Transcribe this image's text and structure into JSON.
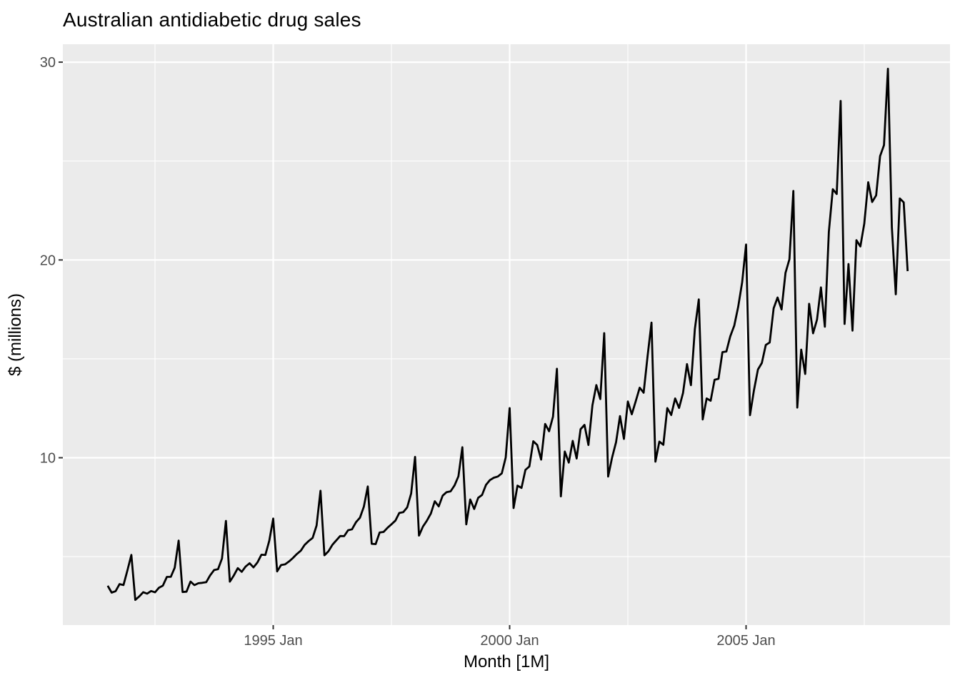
{
  "figure": {
    "background_color": "#FFFFFF"
  },
  "chart_data": {
    "type": "line",
    "title": "Australian antidiabetic drug sales",
    "xlabel": "Month [1M]",
    "ylabel": "$ (millions)",
    "legend": "none",
    "grid": true,
    "panel_bg_color": "#EBEBEB",
    "grid_color": "#FFFFFF",
    "tick_label_color": "#4D4D4D",
    "tick_mark_color": "#333333",
    "line_color": "#000000",
    "y_major_breaks": [
      10,
      20,
      30
    ],
    "y_minor_breaks": [
      5,
      15,
      25
    ],
    "y_tick_labels": [
      "10",
      "20",
      "30"
    ],
    "x_tick_labels": [
      "1995 Jan",
      "2000 Jan",
      "2005 Jan"
    ],
    "x_minor_break_labels": [
      "1992 Jul",
      "1997 Jul",
      "2002 Jul",
      "2007 Jul"
    ],
    "x_start": "1991 Jul",
    "x_end": "2008 Jun",
    "x_frequency": "monthly",
    "ylim_panel": [
      1.5,
      30.9
    ],
    "series": [
      {
        "name": "Antidiabetic drug sales ($ millions)",
        "color": "#000000",
        "values": [
          3.527,
          3.181,
          3.252,
          3.611,
          3.566,
          4.306,
          5.088,
          2.815,
          2.986,
          3.205,
          3.128,
          3.261,
          3.197,
          3.428,
          3.531,
          3.974,
          3.979,
          4.436,
          5.811,
          3.21,
          3.227,
          3.738,
          3.559,
          3.655,
          3.675,
          3.708,
          4.055,
          4.323,
          4.367,
          4.906,
          6.806,
          3.738,
          4.043,
          4.418,
          4.23,
          4.503,
          4.665,
          4.458,
          4.703,
          5.096,
          5.084,
          5.806,
          6.923,
          4.254,
          4.574,
          4.609,
          4.756,
          4.931,
          5.133,
          5.298,
          5.6,
          5.789,
          5.95,
          6.568,
          8.329,
          5.07,
          5.263,
          5.597,
          5.823,
          6.044,
          6.035,
          6.336,
          6.38,
          6.743,
          6.967,
          7.527,
          8.547,
          5.649,
          5.634,
          6.218,
          6.247,
          6.456,
          6.633,
          6.819,
          7.209,
          7.248,
          7.493,
          8.194,
          10.042,
          6.063,
          6.52,
          6.821,
          7.178,
          7.798,
          7.539,
          8.082,
          8.262,
          8.301,
          8.598,
          9.062,
          10.531,
          6.635,
          7.889,
          7.41,
          7.97,
          8.12,
          8.63,
          8.87,
          8.99,
          9.05,
          9.21,
          10.01,
          12.511,
          7.457,
          8.591,
          8.474,
          9.387,
          9.56,
          10.834,
          10.644,
          9.908,
          11.71,
          11.34,
          12.079,
          14.498,
          8.049,
          10.313,
          9.753,
          10.85,
          9.962,
          11.444,
          11.659,
          10.647,
          12.652,
          13.674,
          12.966,
          16.3,
          9.053,
          10.002,
          10.789,
          12.107,
          10.954,
          12.845,
          12.197,
          12.855,
          13.542,
          13.288,
          15.135,
          16.828,
          9.8,
          10.817,
          10.654,
          12.512,
          12.161,
          12.998,
          12.517,
          13.269,
          14.734,
          13.669,
          16.504,
          18.004,
          11.938,
          12.998,
          12.883,
          13.943,
          13.989,
          15.339,
          15.371,
          16.142,
          16.686,
          17.637,
          18.869,
          20.779,
          12.155,
          13.402,
          14.459,
          14.795,
          15.705,
          15.83,
          17.555,
          18.101,
          17.497,
          19.348,
          20.031,
          23.487,
          12.537,
          15.467,
          14.234,
          17.783,
          16.292,
          16.98,
          18.612,
          16.623,
          21.43,
          23.576,
          23.334,
          28.038,
          16.764,
          19.793,
          16.427,
          21.001,
          20.681,
          21.835,
          23.93,
          22.93,
          23.263,
          25.25,
          25.806,
          29.665,
          21.654,
          18.265,
          23.108,
          22.913,
          19.432
        ]
      }
    ]
  }
}
